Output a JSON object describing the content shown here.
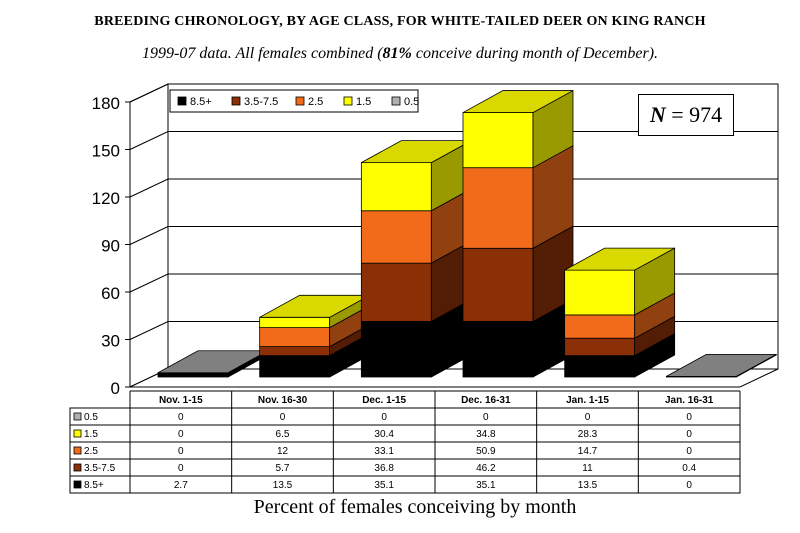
{
  "title": "BREEDING CHRONOLOGY, BY AGE CLASS, FOR WHITE-TAILED DEER ON KING RANCH",
  "subtitle_pre": "1999-07 data.  All females combined (",
  "subtitle_bold": "81%",
  "subtitle_post": " conceive during month of December).",
  "n_label": "N",
  "n_eq": " = ",
  "n_value": "974",
  "colors": {
    "8.5+": "#000000",
    "3.5-7.5": "#8b2f07",
    "2.5": "#f26b1b",
    "1.5": "#ffff00",
    "0.5": "#b0b0b0"
  },
  "chart_data": {
    "type": "bar",
    "stacked": true,
    "three_d": true,
    "xlabel": "Percent of females conceiving by month",
    "ylim": [
      0,
      180
    ],
    "yticks": [
      0,
      30,
      60,
      90,
      120,
      150,
      180
    ],
    "grid": true,
    "legend_position": "top-left",
    "categories": [
      "Nov. 1-15",
      "Nov. 16-30",
      "Dec. 1-15",
      "Dec. 16-31",
      "Jan. 1-15",
      "Jan. 16-31"
    ],
    "series": [
      {
        "name": "8.5+",
        "values": [
          2.7,
          13.5,
          35.1,
          35.1,
          13.5,
          0
        ]
      },
      {
        "name": "3.5-7.5",
        "values": [
          0,
          5.7,
          36.8,
          46.2,
          11,
          0.4
        ]
      },
      {
        "name": "2.5",
        "values": [
          0,
          12,
          33.1,
          50.9,
          14.7,
          0
        ]
      },
      {
        "name": "1.5",
        "values": [
          0,
          6.5,
          30.4,
          34.8,
          28.3,
          0
        ]
      },
      {
        "name": "0.5",
        "values": [
          0,
          0,
          0,
          0,
          0,
          0
        ]
      }
    ],
    "table_row_order": [
      "0.5",
      "1.5",
      "2.5",
      "3.5-7.5",
      "8.5+"
    ]
  }
}
